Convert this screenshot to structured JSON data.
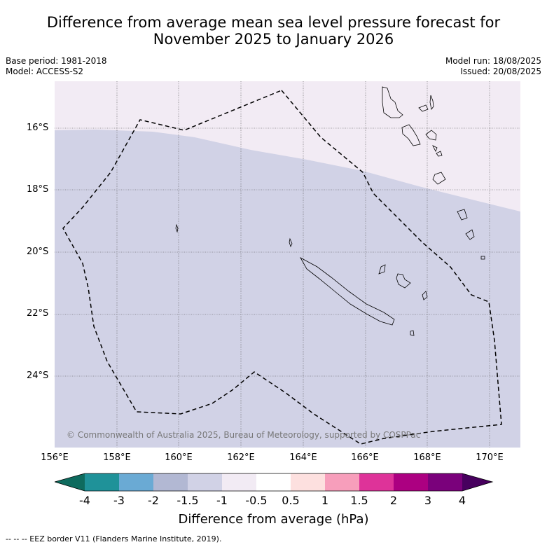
{
  "title_line1": "Difference from average mean sea level pressure forecast for",
  "title_line2": "November 2025 to January 2026",
  "meta": {
    "base_period": "Base period: 1981-2018",
    "model": "Model: ACCESS-S2",
    "model_run": "Model run: 18/08/2025",
    "issued": "Issued: 20/08/2025"
  },
  "axes": {
    "lat_labels": [
      "16°S",
      "18°S",
      "20°S",
      "22°S",
      "24°S"
    ],
    "lon_labels": [
      "156°E",
      "158°E",
      "160°E",
      "162°E",
      "164°E",
      "166°E",
      "168°E",
      "170°E"
    ]
  },
  "credit": "© Commonwealth of Australia 2025, Bureau of Meteorology, supported by COSPPac",
  "colorbar": {
    "label": "Difference from average (hPa)",
    "ticks": [
      "-4",
      "-3",
      "-2",
      "-1.5",
      "-1",
      "-0.5",
      "0.5",
      "1",
      "1.5",
      "2",
      "3",
      "4"
    ],
    "colors": [
      "#0e6b5e",
      "#1f9299",
      "#6aaad4",
      "#b2b8d3",
      "#d1d2e6",
      "#f2ebf4",
      "#ffffff",
      "#fde0df",
      "#f79ebb",
      "#de3399",
      "#ac0081",
      "#7a017b",
      "#47005e"
    ]
  },
  "footnote": "--  --  -- EEZ border V11 (Flanders Marine Institute, 2019).",
  "map_colors": {
    "region_low": "#d1d2e6",
    "region_mid": "#f2ebf4"
  }
}
